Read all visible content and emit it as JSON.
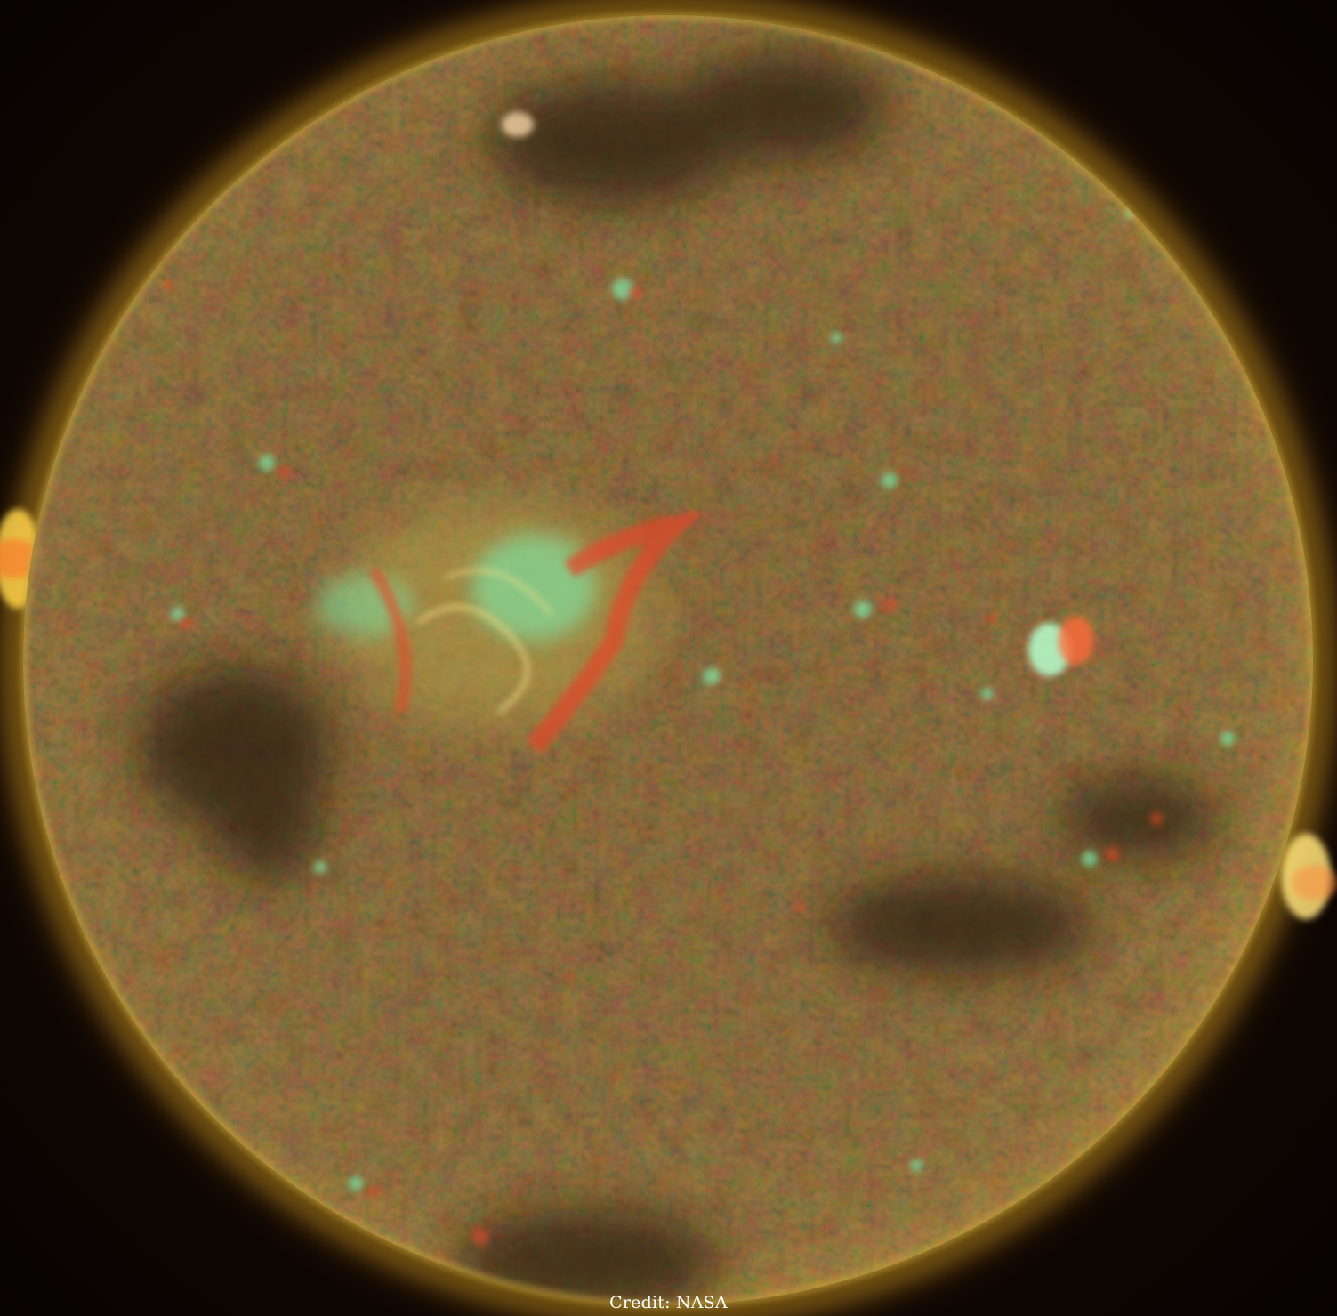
{
  "image": {
    "subject": "sun-full-disk",
    "colors": {
      "background": "#0b0503",
      "corona": "#b98a1e",
      "limb": "#c9a63a",
      "disk_base": "#6a5a2e",
      "disk_dark": "#3b2c16",
      "active_green": "#7fe7a6",
      "active_red": "#e0482a",
      "flare_yellow": "#ffe58a"
    }
  },
  "credit": {
    "text": "Credit: NASA"
  }
}
